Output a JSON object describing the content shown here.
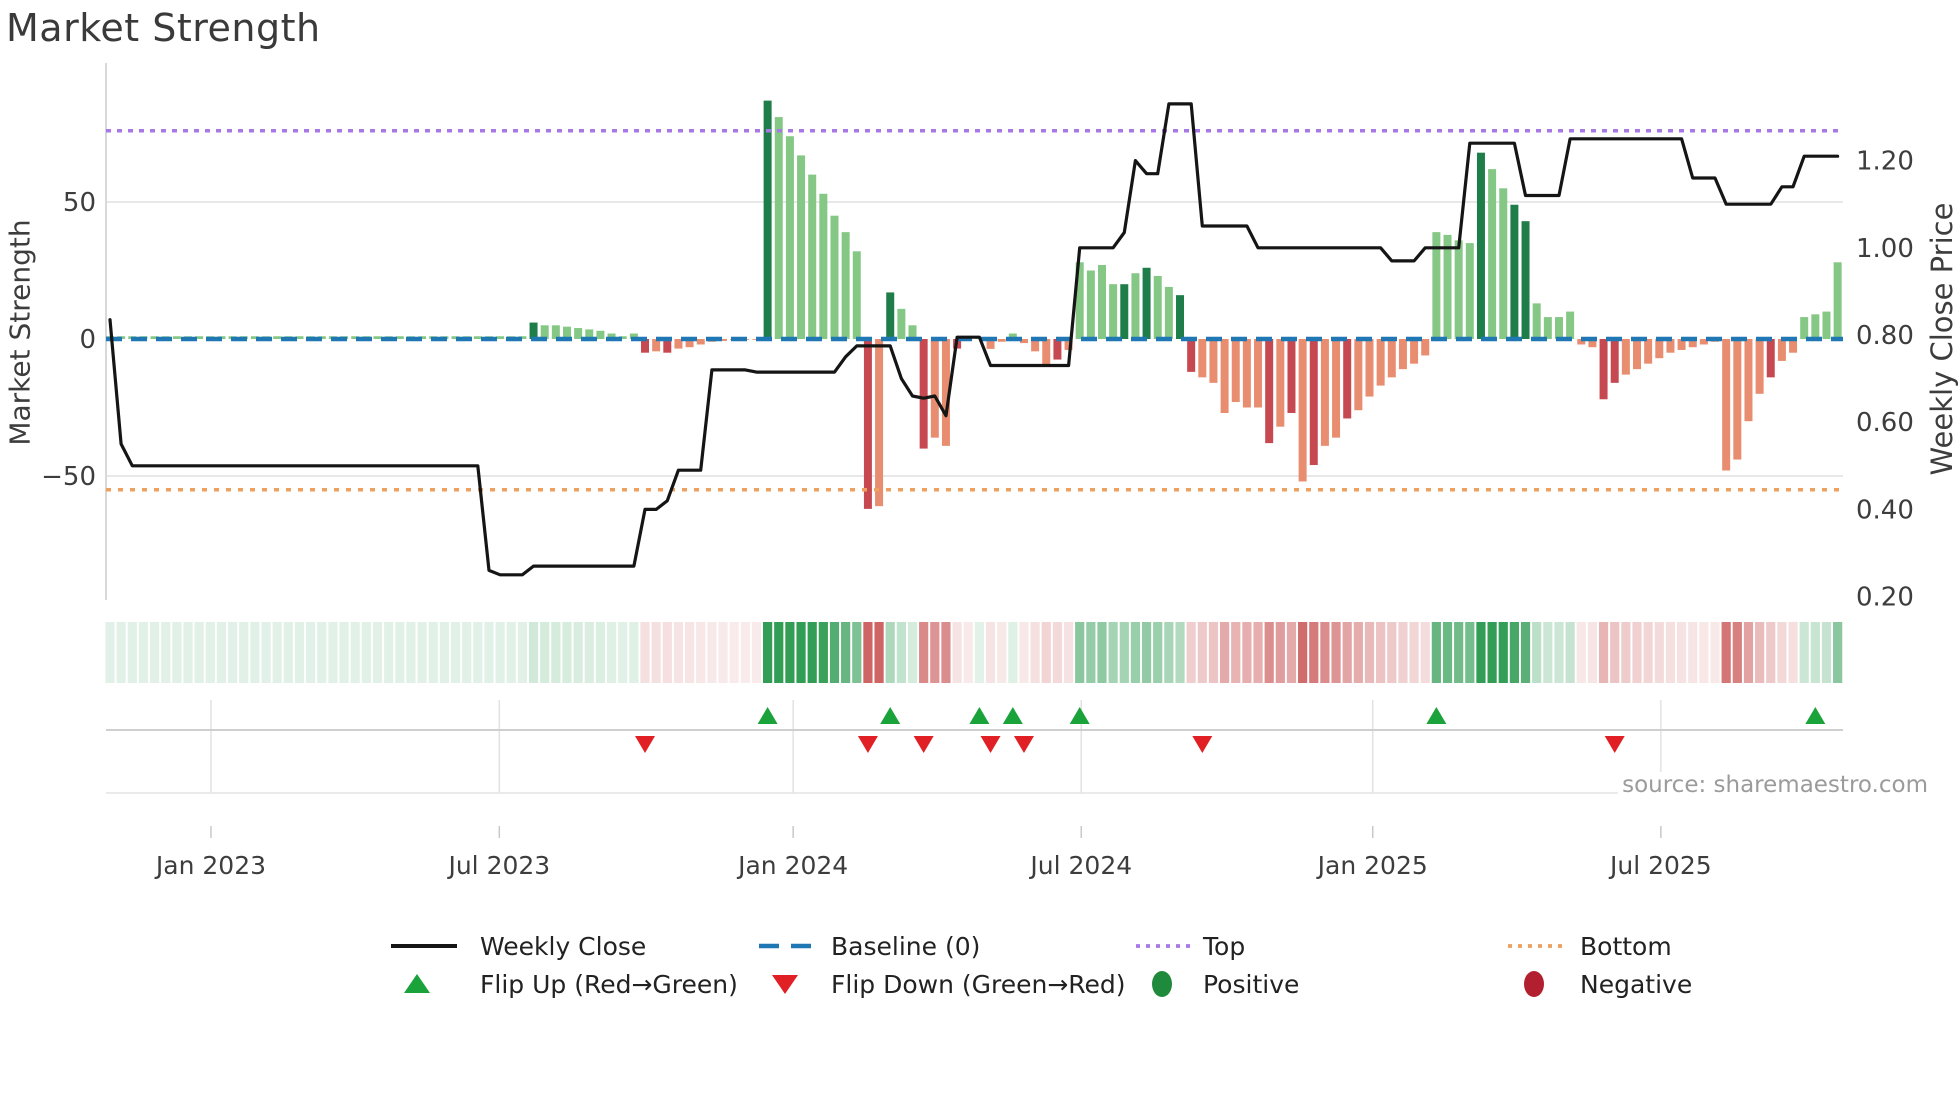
{
  "title": "Market Strength",
  "source_text": "source: sharemaestro.com",
  "axes": {
    "left_label": "Market Strength",
    "right_label": "Weekly Close Price",
    "left_ticks": [
      {
        "value": 50,
        "label": "50"
      },
      {
        "value": 0,
        "label": "0"
      },
      {
        "value": -50,
        "label": "−50"
      }
    ],
    "right_ticks": [
      {
        "value": 1.2,
        "label": "1.20"
      },
      {
        "value": 1.0,
        "label": "1.00"
      },
      {
        "value": 0.8,
        "label": "0.80"
      },
      {
        "value": 0.6,
        "label": "0.60"
      },
      {
        "value": 0.4,
        "label": "0.40"
      },
      {
        "value": 0.2,
        "label": "0.20"
      }
    ],
    "x_ticks": [
      {
        "week": 9.06,
        "label": "Jan 2023"
      },
      {
        "week": 34.93,
        "label": "Jul 2023"
      },
      {
        "week": 61.29,
        "label": "Jan 2024"
      },
      {
        "week": 87.14,
        "label": "Jul 2024"
      },
      {
        "week": 113.29,
        "label": "Jan 2025"
      },
      {
        "week": 139.14,
        "label": "Jul 2025"
      }
    ]
  },
  "chart_data": {
    "type": "bar+line+heatmap",
    "weeks": 156,
    "ylim_strength": [
      -95,
      100
    ],
    "ylim_price": [
      0.19,
      1.42
    ],
    "baseline": 0,
    "top_level": 76,
    "bottom_level": -55,
    "series": [
      {
        "name": "Market Strength",
        "type": "bar",
        "values": [
          1,
          1,
          1,
          1,
          1,
          1,
          1,
          1,
          1,
          1,
          1,
          1,
          1,
          1,
          1,
          1,
          1,
          1,
          1,
          1,
          1,
          1,
          1,
          1,
          1,
          1,
          1,
          1,
          1,
          1,
          1,
          1,
          1,
          1,
          1,
          1,
          1,
          1,
          6,
          5,
          5,
          4.5,
          4,
          3.5,
          3,
          2,
          1,
          2,
          -5,
          -4.5,
          -5,
          -3.5,
          -3,
          -2,
          -1,
          -0.7,
          -0.3,
          -0.3,
          -0.3,
          87,
          81,
          74,
          67,
          60,
          53,
          45,
          39,
          32,
          -62,
          -61,
          17,
          11,
          5,
          -40,
          -36,
          -39,
          -3.5,
          -0.5,
          0.5,
          -3.6,
          -1,
          2,
          -1.5,
          -4.5,
          -9.5,
          -7.5,
          -4,
          28,
          25,
          27,
          20,
          20,
          24,
          26,
          23,
          19,
          16,
          -12,
          -14,
          -16,
          -27,
          -23,
          -25,
          -25,
          -38,
          -32,
          -27,
          -52,
          -46,
          -39,
          -36,
          -29,
          -26,
          -21,
          -17,
          -14,
          -11,
          -9,
          -6,
          39,
          38,
          36,
          35,
          68,
          62,
          55,
          49,
          43,
          13,
          8,
          8,
          10,
          -2,
          -3,
          -22,
          -16,
          -13,
          -11,
          -9,
          -7,
          -5,
          -4,
          -3,
          -2,
          -1,
          -48,
          -44,
          -30,
          -20,
          -14,
          -8,
          -5,
          8,
          9,
          10,
          28
        ],
        "tones": "000000000000000000000000000000000000001000000000101000000001000000001010010010000000010000010100110000001010100100000000000100110000001100000000000001000000 1111"
      },
      {
        "name": "Weekly Close",
        "type": "line",
        "values": [
          0.835,
          0.55,
          0.5,
          0.5,
          0.5,
          0.5,
          0.5,
          0.5,
          0.5,
          0.5,
          0.5,
          0.5,
          0.5,
          0.5,
          0.5,
          0.5,
          0.5,
          0.5,
          0.5,
          0.5,
          0.5,
          0.5,
          0.5,
          0.5,
          0.5,
          0.5,
          0.5,
          0.5,
          0.5,
          0.5,
          0.5,
          0.5,
          0.5,
          0.5,
          0.26,
          0.25,
          0.25,
          0.25,
          0.27,
          0.27,
          0.27,
          0.27,
          0.27,
          0.27,
          0.27,
          0.27,
          0.27,
          0.27,
          0.4,
          0.4,
          0.42,
          0.49,
          0.49,
          0.49,
          0.72,
          0.72,
          0.72,
          0.72,
          0.715,
          0.715,
          0.715,
          0.715,
          0.715,
          0.715,
          0.715,
          0.715,
          0.75,
          0.775,
          0.775,
          0.775,
          0.775,
          0.7,
          0.66,
          0.655,
          0.66,
          0.615,
          0.795,
          0.795,
          0.795,
          0.73,
          0.73,
          0.73,
          0.73,
          0.73,
          0.73,
          0.73,
          0.73,
          1.0,
          1.0,
          1.0,
          1.0,
          1.035,
          1.2,
          1.17,
          1.17,
          1.33,
          1.33,
          1.33,
          1.05,
          1.05,
          1.05,
          1.05,
          1.05,
          1.0,
          1.0,
          1.0,
          1.0,
          1.0,
          1.0,
          1.0,
          1.0,
          1.0,
          1.0,
          1.0,
          1.0,
          0.97,
          0.97,
          0.97,
          1.0,
          1.0,
          1.0,
          1.0,
          1.24,
          1.24,
          1.24,
          1.24,
          1.24,
          1.12,
          1.12,
          1.12,
          1.12,
          1.25,
          1.25,
          1.25,
          1.25,
          1.25,
          1.25,
          1.25,
          1.25,
          1.25,
          1.25,
          1.25,
          1.16,
          1.16,
          1.16,
          1.1,
          1.1,
          1.1,
          1.1,
          1.1,
          1.14,
          1.14,
          1.21,
          1.21,
          1.21,
          1.21
        ]
      }
    ],
    "flip_up_weeks": [
      59,
      70,
      78,
      81,
      87,
      119,
      153
    ],
    "flip_down_weeks": [
      48,
      68,
      73,
      79,
      82,
      98,
      135
    ]
  },
  "legend": {
    "row1": [
      {
        "swatch": "line",
        "label": "Weekly Close"
      },
      {
        "swatch": "dashes",
        "label": "Baseline (0)"
      },
      {
        "swatch": "dots-purple",
        "label": "Top"
      },
      {
        "swatch": "dots-orange",
        "label": "Bottom"
      }
    ],
    "row2": [
      {
        "swatch": "triangle-up",
        "label": "Flip Up (Red→Green)"
      },
      {
        "swatch": "triangle-down",
        "label": "Flip Down (Green→Red)"
      },
      {
        "swatch": "dot-green",
        "label": "Positive"
      },
      {
        "swatch": "dot-darkred",
        "label": "Negative"
      }
    ]
  },
  "colors": {
    "price_line": "#151515",
    "baseline_blue": "#1f77b4",
    "top_purple": "#a878e6",
    "bottom_orange": "#eda05f",
    "bar_green_dark": "#1f7d4a",
    "bar_green_light": "#85c784",
    "bar_red_dark": "#c64952",
    "bar_red_light": "#e88d6f",
    "heat_green": "#27984c",
    "heat_red": "#cc5c5c",
    "marker_green": "#1aa33a",
    "marker_red": "#e02024",
    "legend_pos_green": "#1f8a3c",
    "legend_neg_red": "#b22030",
    "grid": "#e8e8e8",
    "tick_text": "#3d3d3d"
  }
}
